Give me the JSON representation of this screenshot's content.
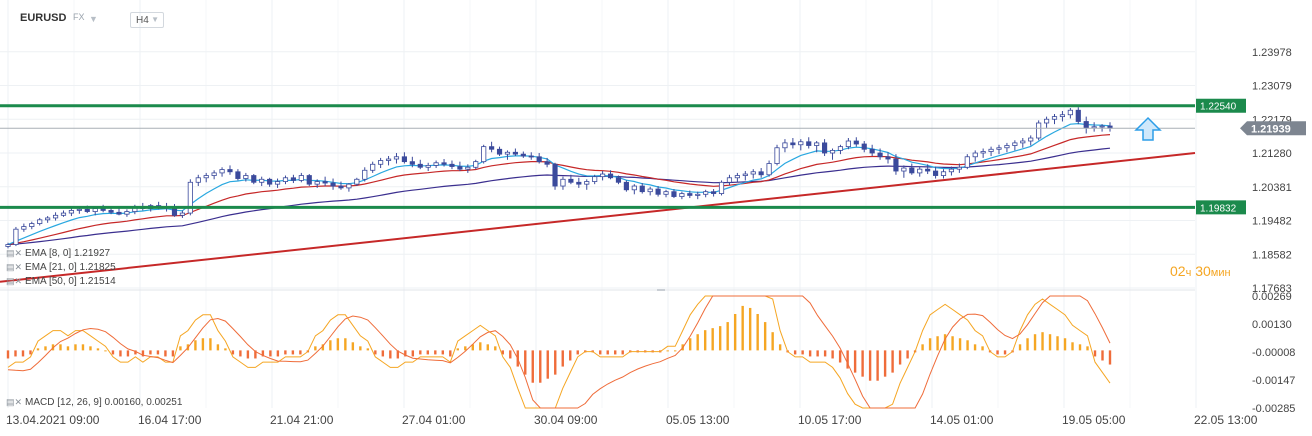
{
  "header": {
    "symbol": "EURUSD",
    "market": "FX",
    "timeframe": "H4"
  },
  "colors": {
    "candle_up": "#ffffff",
    "candle_down": "#3b4a9c",
    "ema8": "#29a8e0",
    "ema21": "#c62828",
    "ema50": "#3b2f8f",
    "level": "#1b8a4c",
    "trendline": "#c62828",
    "macd_line": "#ef6c3a",
    "signal_line": "#f5a623",
    "hist_pos": "#f5a623",
    "hist_neg": "#ef6c3a",
    "price_tag": "#7d8590",
    "arrow": "#2d9ee8"
  },
  "legend": {
    "ema8": "EMA [8, 0] 1.21927",
    "ema21": "EMA [21, 0] 1.21825",
    "ema50": "EMA [50, 0] 1.21514",
    "macd": "MACD [12, 26, 9] 0.00160, 0.00251"
  },
  "countdown": {
    "hours": "02",
    "hours_unit": "ч",
    "minutes": "30",
    "minutes_unit": "мин"
  },
  "chart_data": [
    {
      "type": "candlestick",
      "title": "EURUSD",
      "ylim": [
        1.17683,
        1.24878
      ],
      "y_ticks": [
        "1.23978",
        "1.23079",
        "1.22179",
        "1.21280",
        "1.20381",
        "1.19482",
        "1.18582",
        "1.17683"
      ],
      "x_ticks": [
        "13.04.2021  09:00",
        "16.04  17:00",
        "21.04  21:00",
        "27.04  01:00",
        "30.04  09:00",
        "05.05  13:00",
        "10.05  17:00",
        "14.05  01:00",
        "19.05  05:00",
        "22.05  13:00"
      ],
      "current_price": 1.21939,
      "current_price_label": "1.21939",
      "levels": [
        {
          "name": "resistance",
          "value": 1.2254,
          "label": "1.22540"
        },
        {
          "name": "support",
          "value": 1.19832,
          "label": "1.19832"
        }
      ],
      "trendline": [
        [
          0,
          1.1785
        ],
        [
          150,
          1.2128
        ]
      ],
      "candles": [
        [
          1.1879,
          1.1889,
          1.1874,
          1.1884
        ],
        [
          1.1884,
          1.1931,
          1.188,
          1.1925
        ],
        [
          1.1925,
          1.194,
          1.1918,
          1.1932
        ],
        [
          1.1932,
          1.1945,
          1.1925,
          1.194
        ],
        [
          1.194,
          1.1955,
          1.1935,
          1.195
        ],
        [
          1.195,
          1.196,
          1.1942,
          1.1955
        ],
        [
          1.1955,
          1.197,
          1.1948,
          1.1962
        ],
        [
          1.1962,
          1.1975,
          1.1958,
          1.1968
        ],
        [
          1.1968,
          1.1982,
          1.196,
          1.1975
        ],
        [
          1.1975,
          1.1985,
          1.1966,
          1.1978
        ],
        [
          1.1978,
          1.1988,
          1.1968,
          1.1972
        ],
        [
          1.1972,
          1.1985,
          1.1962,
          1.198
        ],
        [
          1.198,
          1.199,
          1.197,
          1.1975
        ],
        [
          1.1975,
          1.1985,
          1.1965,
          1.197
        ],
        [
          1.197,
          1.1982,
          1.1962,
          1.1965
        ],
        [
          1.1965,
          1.1978,
          1.1958,
          1.1972
        ],
        [
          1.1972,
          1.199,
          1.1965,
          1.1985
        ],
        [
          1.1985,
          1.1995,
          1.1975,
          1.198
        ],
        [
          1.198,
          1.1992,
          1.1972,
          1.1988
        ],
        [
          1.1988,
          1.1998,
          1.1978,
          1.1982
        ],
        [
          1.1982,
          1.1995,
          1.1972,
          1.1985
        ],
        [
          1.1985,
          1.1992,
          1.1958,
          1.1962
        ],
        [
          1.1962,
          1.1975,
          1.1955,
          1.1968
        ],
        [
          1.1968,
          1.2058,
          1.1962,
          1.205
        ],
        [
          1.205,
          1.207,
          1.204,
          1.2062
        ],
        [
          1.2062,
          1.2075,
          1.205,
          1.2068
        ],
        [
          1.2068,
          1.2082,
          1.2058,
          1.2075
        ],
        [
          1.2075,
          1.209,
          1.2065,
          1.2084
        ],
        [
          1.2084,
          1.2095,
          1.207,
          1.2078
        ],
        [
          1.2078,
          1.2085,
          1.2055,
          1.206
        ],
        [
          1.206,
          1.2075,
          1.2052,
          1.2068
        ],
        [
          1.2068,
          1.2072,
          1.2045,
          1.205
        ],
        [
          1.205,
          1.2065,
          1.204,
          1.2058
        ],
        [
          1.2058,
          1.2062,
          1.2038,
          1.2045
        ],
        [
          1.2045,
          1.206,
          1.2035,
          1.2052
        ],
        [
          1.2052,
          1.2068,
          1.2045,
          1.2062
        ],
        [
          1.2062,
          1.207,
          1.2048,
          1.2055
        ],
        [
          1.2055,
          1.2075,
          1.205,
          1.2068
        ],
        [
          1.2068,
          1.2072,
          1.204,
          1.2045
        ],
        [
          1.2045,
          1.2058,
          1.2035,
          1.2052
        ],
        [
          1.2052,
          1.2065,
          1.204,
          1.2048
        ],
        [
          1.2048,
          1.206,
          1.203,
          1.204
        ],
        [
          1.204,
          1.2052,
          1.203,
          1.2035
        ],
        [
          1.2035,
          1.2048,
          1.2025,
          1.2045
        ],
        [
          1.2045,
          1.2062,
          1.204,
          1.2058
        ],
        [
          1.2058,
          1.209,
          1.2052,
          1.2082
        ],
        [
          1.2082,
          1.2105,
          1.2075,
          1.2098
        ],
        [
          1.2098,
          1.2115,
          1.2088,
          1.2108
        ],
        [
          1.2108,
          1.212,
          1.2095,
          1.2112
        ],
        [
          1.2112,
          1.2128,
          1.21,
          1.2118
        ],
        [
          1.2118,
          1.213,
          1.21,
          1.2105
        ],
        [
          1.2105,
          1.2118,
          1.209,
          1.2098
        ],
        [
          1.2098,
          1.211,
          1.2085,
          1.209
        ],
        [
          1.209,
          1.2102,
          1.208,
          1.2095
        ],
        [
          1.2095,
          1.2108,
          1.2088,
          1.2102
        ],
        [
          1.2102,
          1.2112,
          1.2092,
          1.2098
        ],
        [
          1.2098,
          1.2108,
          1.2085,
          1.2092
        ],
        [
          1.2092,
          1.2105,
          1.208,
          1.2085
        ],
        [
          1.2085,
          1.2098,
          1.2075,
          1.209
        ],
        [
          1.209,
          1.211,
          1.2085,
          1.2105
        ],
        [
          1.2105,
          1.215,
          1.21,
          1.2145
        ],
        [
          1.2145,
          1.2158,
          1.213,
          1.2138
        ],
        [
          1.2138,
          1.2145,
          1.212,
          1.2125
        ],
        [
          1.2125,
          1.2135,
          1.211,
          1.213
        ],
        [
          1.213,
          1.214,
          1.212,
          1.2125
        ],
        [
          1.2125,
          1.2132,
          1.2115,
          1.212
        ],
        [
          1.212,
          1.213,
          1.211,
          1.2118
        ],
        [
          1.2118,
          1.2128,
          1.21,
          1.2105
        ],
        [
          1.2105,
          1.2115,
          1.209,
          1.2098
        ],
        [
          1.2098,
          1.2102,
          1.203,
          1.204
        ],
        [
          1.204,
          1.2065,
          1.203,
          1.2058
        ],
        [
          1.2058,
          1.207,
          1.2045,
          1.205
        ],
        [
          1.205,
          1.2062,
          1.2035,
          1.2045
        ],
        [
          1.2045,
          1.2058,
          1.203,
          1.2052
        ],
        [
          1.2052,
          1.207,
          1.2045,
          1.2065
        ],
        [
          1.2065,
          1.208,
          1.2055,
          1.2072
        ],
        [
          1.2072,
          1.2082,
          1.2058,
          1.2062
        ],
        [
          1.2062,
          1.2068,
          1.2045,
          1.205
        ],
        [
          1.205,
          1.2055,
          1.2025,
          1.203
        ],
        [
          1.203,
          1.2045,
          1.2018,
          1.204
        ],
        [
          1.204,
          1.2048,
          1.202,
          1.2025
        ],
        [
          1.2025,
          1.2038,
          1.2015,
          1.2032
        ],
        [
          1.2032,
          1.204,
          1.2012,
          1.2018
        ],
        [
          1.2018,
          1.203,
          1.201,
          1.2025
        ],
        [
          1.2025,
          1.2032,
          1.2008,
          1.2012
        ],
        [
          1.2012,
          1.2025,
          1.2005,
          1.202
        ],
        [
          1.202,
          1.2028,
          1.2008,
          1.2015
        ],
        [
          1.2015,
          1.2025,
          1.2005,
          1.2018
        ],
        [
          1.2018,
          1.203,
          1.201,
          1.2025
        ],
        [
          1.2025,
          1.2032,
          1.2012,
          1.202
        ],
        [
          1.202,
          1.2055,
          1.2015,
          1.205
        ],
        [
          1.205,
          1.207,
          1.2042,
          1.2062
        ],
        [
          1.2062,
          1.2075,
          1.205,
          1.2068
        ],
        [
          1.2068,
          1.208,
          1.2055,
          1.2072
        ],
        [
          1.2072,
          1.2085,
          1.206,
          1.2078
        ],
        [
          1.2078,
          1.2088,
          1.2062,
          1.207
        ],
        [
          1.207,
          1.2108,
          1.2065,
          1.21
        ],
        [
          1.21,
          1.215,
          1.2095,
          1.2142
        ],
        [
          1.2142,
          1.2165,
          1.213,
          1.2155
        ],
        [
          1.2155,
          1.2168,
          1.214,
          1.215
        ],
        [
          1.215,
          1.2165,
          1.2135,
          1.2158
        ],
        [
          1.2158,
          1.217,
          1.214,
          1.2148
        ],
        [
          1.2148,
          1.216,
          1.213,
          1.2155
        ],
        [
          1.2155,
          1.2165,
          1.212,
          1.2128
        ],
        [
          1.2128,
          1.214,
          1.211,
          1.2135
        ],
        [
          1.2135,
          1.215,
          1.2125,
          1.2145
        ],
        [
          1.2145,
          1.2168,
          1.2138,
          1.216
        ],
        [
          1.216,
          1.217,
          1.2145,
          1.2152
        ],
        [
          1.2152,
          1.216,
          1.213,
          1.2138
        ],
        [
          1.2138,
          1.215,
          1.212,
          1.2128
        ],
        [
          1.2128,
          1.214,
          1.211,
          1.2118
        ],
        [
          1.2118,
          1.213,
          1.21,
          1.2112
        ],
        [
          1.2112,
          1.2125,
          1.207,
          1.208
        ],
        [
          1.208,
          1.2095,
          1.2062,
          1.2088
        ],
        [
          1.2088,
          1.21,
          1.207,
          1.2075
        ],
        [
          1.2075,
          1.2092,
          1.2065,
          1.2085
        ],
        [
          1.2085,
          1.2098,
          1.2072,
          1.208
        ],
        [
          1.208,
          1.2092,
          1.206,
          1.2068
        ],
        [
          1.2068,
          1.2085,
          1.206,
          1.2078
        ],
        [
          1.2078,
          1.2092,
          1.2068,
          1.2085
        ],
        [
          1.2085,
          1.21,
          1.2075,
          1.209
        ],
        [
          1.209,
          1.2125,
          1.2085,
          1.2118
        ],
        [
          1.2118,
          1.2135,
          1.2105,
          1.2128
        ],
        [
          1.2128,
          1.214,
          1.2115,
          1.2132
        ],
        [
          1.2132,
          1.2145,
          1.212,
          1.2138
        ],
        [
          1.2138,
          1.215,
          1.2125,
          1.2142
        ],
        [
          1.2142,
          1.2155,
          1.213,
          1.2148
        ],
        [
          1.2148,
          1.2162,
          1.2135,
          1.2155
        ],
        [
          1.2155,
          1.2168,
          1.2142,
          1.216
        ],
        [
          1.216,
          1.2175,
          1.2148,
          1.2168
        ],
        [
          1.2168,
          1.2215,
          1.2162,
          1.2208
        ],
        [
          1.2208,
          1.2225,
          1.2195,
          1.2218
        ],
        [
          1.2218,
          1.2232,
          1.2205,
          1.2225
        ],
        [
          1.2225,
          1.224,
          1.2212,
          1.223
        ],
        [
          1.223,
          1.2248,
          1.222,
          1.2242
        ],
        [
          1.2242,
          1.225,
          1.2205,
          1.2212
        ],
        [
          1.2212,
          1.2225,
          1.218,
          1.2195
        ],
        [
          1.2195,
          1.221,
          1.2185,
          1.2198
        ],
        [
          1.2198,
          1.2205,
          1.2185,
          1.22
        ],
        [
          1.22,
          1.221,
          1.2185,
          1.2194
        ]
      ],
      "ema8_last": 1.21927,
      "ema21_last": 1.21825,
      "ema50_last": 1.21514
    },
    {
      "type": "macd",
      "ylim": [
        -0.00285,
        0.00269
      ],
      "y_ticks": [
        "0.00269",
        "0.00130",
        "-0.00008",
        "-0.00147",
        "-0.00285"
      ],
      "macd_last": 0.0016,
      "signal_last": 0.00251,
      "histogram": [
        -0.0004,
        -0.0003,
        -0.0003,
        -0.0002,
        0.0001,
        0.0002,
        0.0003,
        0.0003,
        0.0002,
        0.0003,
        0.0003,
        0.0002,
        0.0001,
        0.0,
        -0.0002,
        -0.0003,
        -0.0003,
        -0.0002,
        -0.0003,
        -0.0002,
        -0.0002,
        -0.0003,
        -0.0003,
        0.0002,
        0.0003,
        0.0005,
        0.0006,
        0.0006,
        0.0003,
        0.0001,
        -0.0002,
        -0.0003,
        -0.0004,
        -0.0004,
        -0.0003,
        -0.0003,
        -0.0003,
        -0.0002,
        -0.0002,
        -0.0002,
        -0.0001,
        0.0002,
        0.0003,
        0.0005,
        0.0006,
        0.0006,
        0.0004,
        0.0002,
        0.0001,
        -0.0002,
        -0.0003,
        -0.0004,
        -0.0004,
        -0.0003,
        -0.0003,
        -0.0002,
        -0.0002,
        -0.0002,
        -0.0002,
        -0.0003,
        0.0001,
        0.0002,
        0.0003,
        0.0004,
        0.0003,
        0.0002,
        -0.0002,
        -0.0004,
        -0.0008,
        -0.0012,
        -0.0016,
        -0.0016,
        -0.0014,
        -0.0012,
        -0.0008,
        -0.0005,
        -0.0002,
        -0.0001,
        -0.0001,
        -0.0002,
        -0.0002,
        -0.0002,
        -0.0002,
        -0.0001,
        -0.0001,
        -0.0001,
        -0.0001,
        -0.0001,
        0.0,
        0.0,
        0.0003,
        0.0006,
        0.0008,
        0.001,
        0.0011,
        0.0012,
        0.0014,
        0.0018,
        0.0022,
        0.0021,
        0.0018,
        0.0014,
        0.0009,
        0.0003,
        -0.0001,
        -0.0002,
        -0.0002,
        -0.0003,
        -0.0003,
        -0.0003,
        -0.0004,
        -0.0006,
        -0.0009,
        -0.0011,
        -0.0013,
        -0.0015,
        -0.0015,
        -0.0013,
        -0.0011,
        -0.0007,
        -0.0004,
        -0.0001,
        0.0003,
        0.0006,
        0.0007,
        0.0008,
        0.0007,
        0.0006,
        0.0005,
        0.0003,
        0.0002,
        -0.0001,
        -0.0002,
        -0.0002,
        -0.0001,
        0.0003,
        0.0006,
        0.0008,
        0.0009,
        0.0008,
        0.0007,
        0.0006,
        0.0004,
        0.0003,
        0.0002,
        -0.0003,
        -0.0005,
        -0.0007
      ]
    }
  ]
}
